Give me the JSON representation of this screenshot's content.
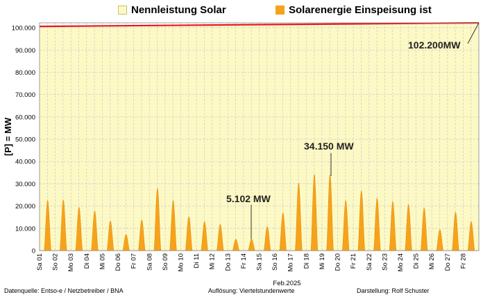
{
  "chart_data": {
    "type": "area",
    "legend": [
      {
        "label": "Nennleistung Solar",
        "color": "#fdf9c4"
      },
      {
        "label": "Solarenergie Einspeisung ist",
        "color": "#f7a21b"
      }
    ],
    "ylabel": "[P] = MW",
    "xlabel": "Feb.2025",
    "ylim": [
      0,
      102200
    ],
    "yticks": [
      "0",
      "10.000",
      "20.000",
      "30.000",
      "40.000",
      "50.000",
      "60.000",
      "70.000",
      "80.000",
      "90.000",
      "100.000"
    ],
    "ytick_values": [
      0,
      10000,
      20000,
      30000,
      40000,
      50000,
      60000,
      70000,
      80000,
      90000,
      100000
    ],
    "categories": [
      "Sa 01",
      "So 02",
      "Mo 03",
      "Di 04",
      "Mi 05",
      "Do 06",
      "Fr 07",
      "Sa 08",
      "So 09",
      "Mo 10",
      "Di 11",
      "Mi 12",
      "Do 13",
      "Fr 14",
      "Sa 15",
      "So 16",
      "Mo 17",
      "Di 18",
      "Mi 19",
      "Do 20",
      "Fr 21",
      "Sa 22",
      "So 23",
      "Mo 24",
      "Di 25",
      "Mi 26",
      "Do 27",
      "Fr 28"
    ],
    "series": [
      {
        "name": "Nennleistung Solar",
        "values_start": 100600,
        "values_end": 102200,
        "color": "#e8161c"
      },
      {
        "name": "Solarenergie Einspeisung ist",
        "color": "#f7a21b",
        "daily_peaks": [
          22500,
          22800,
          19500,
          17800,
          13300,
          7300,
          13800,
          28000,
          22500,
          15300,
          13000,
          11800,
          5100,
          5102,
          10800,
          17000,
          30300,
          34200,
          34150,
          22500,
          26800,
          23500,
          22000,
          20700,
          19200,
          9500,
          17300,
          13000
        ]
      }
    ],
    "annotations": [
      {
        "text": "102.200MW",
        "day": 28,
        "value": 102200
      },
      {
        "text": "34.150 MW",
        "day": 19,
        "value": 34150
      },
      {
        "text": "5.102 MW",
        "day": 14,
        "value": 5102
      }
    ],
    "grid": true
  },
  "footer": {
    "source": "Datenquelle:  Entso-e  / Netzbetreiber / BNA",
    "resolution": "Auflösung:  Viertelstundenwerte",
    "author": "Darstellung:  Rolf Schuster"
  }
}
